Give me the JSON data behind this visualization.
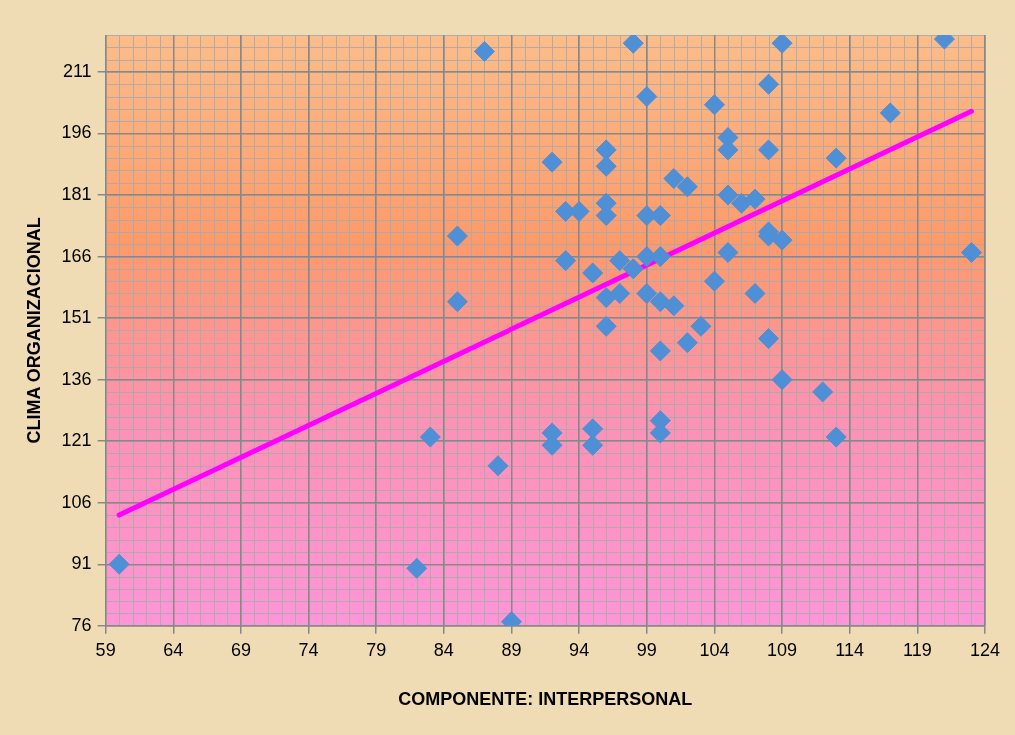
{
  "chart_data": {
    "type": "scatter",
    "xlabel": "COMPONENTE: INTERPERSONAL",
    "ylabel": "CLIMA ORGANIZACIONAL",
    "xlim": [
      59,
      124
    ],
    "xticks": [
      59,
      64,
      69,
      74,
      79,
      84,
      89,
      94,
      99,
      104,
      109,
      114,
      119,
      124
    ],
    "ylim": [
      76,
      220
    ],
    "yticks": [
      76,
      91,
      106,
      121,
      136,
      151,
      166,
      181,
      196,
      211
    ],
    "grid": true,
    "legend": false,
    "marker": "diamond",
    "series": [
      {
        "color": "#4f8fd6",
        "x": [
          60,
          82,
          83,
          85,
          85,
          87,
          88,
          89,
          92,
          92,
          92,
          93,
          93,
          94,
          95,
          95,
          95,
          96,
          96,
          96,
          96,
          96,
          96,
          97,
          97,
          98,
          98,
          99,
          99,
          99,
          99,
          100,
          100,
          100,
          100,
          100,
          100,
          101,
          101,
          102,
          102,
          103,
          104,
          104,
          105,
          105,
          105,
          105,
          106,
          107,
          107,
          108,
          108,
          108,
          108,
          108,
          109,
          109,
          109,
          112,
          113,
          113,
          117,
          121,
          123
        ],
        "values": [
          91,
          90,
          122,
          155,
          171,
          216,
          115,
          77,
          189,
          123,
          120,
          177,
          165,
          177,
          162,
          124,
          120,
          192,
          188,
          179,
          176,
          156,
          149,
          165,
          157,
          218,
          163,
          205,
          176,
          166,
          157,
          176,
          166,
          155,
          143,
          126,
          123,
          185,
          154,
          183,
          145,
          149,
          203,
          160,
          195,
          192,
          181,
          167,
          179,
          180,
          157,
          208,
          192,
          172,
          171,
          146,
          218,
          170,
          136,
          133,
          190,
          122,
          201,
          219,
          167
        ]
      },
      {
        "type": "line",
        "color": "#ff00ff",
        "marker": "none",
        "x": [
          60,
          123
        ],
        "values": [
          103,
          201.4
        ]
      }
    ]
  }
}
